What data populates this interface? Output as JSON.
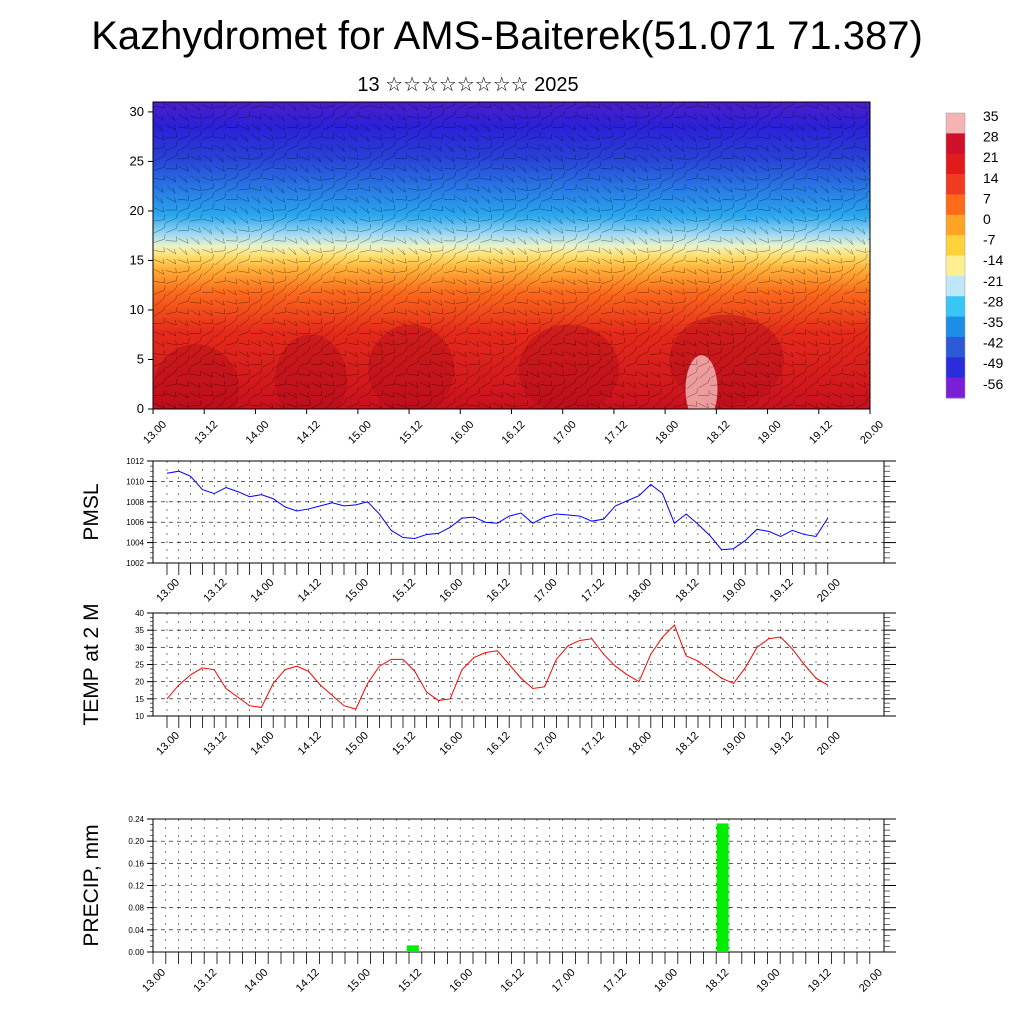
{
  "title": "Kazhydromet for AMS-Baiterek(51.071 71.387)",
  "subtitle": "13 ☆☆☆☆☆☆☆☆ 2025",
  "time_ticks": [
    "13.00",
    "13.12",
    "14.00",
    "14.12",
    "15.00",
    "15.12",
    "16.00",
    "16.12",
    "17.00",
    "17.12",
    "18.00",
    "18.12",
    "19.00",
    "19.12",
    "20.00"
  ],
  "chart_data": [
    {
      "id": "cross-section",
      "type": "heatmap",
      "title": "",
      "ylabel": "",
      "x_ticks": [
        "13.00",
        "13.12",
        "14.00",
        "14.12",
        "15.00",
        "15.12",
        "16.00",
        "16.12",
        "17.00",
        "17.12",
        "18.00",
        "18.12",
        "19.00",
        "19.12",
        "20.00"
      ],
      "y_ticks": [
        0,
        5,
        10,
        15,
        20,
        25,
        30
      ],
      "ylim": [
        0,
        31
      ],
      "colorbar_labels": [
        "35",
        "28",
        "21",
        "14",
        "7",
        "0",
        "-7",
        "-14",
        "-21",
        "-28",
        "-35",
        "-42",
        "-49",
        "-56"
      ],
      "colorbar_colors": [
        "#f4b4b4",
        "#d0102a",
        "#e31a1c",
        "#f03b20",
        "#fd6a1a",
        "#ffa424",
        "#ffd23a",
        "#ffef90",
        "#bfe7f8",
        "#3ac6f4",
        "#1c8ee6",
        "#2a5ad8",
        "#2b2cdc",
        "#7a1fd6"
      ],
      "wind_barbs": true
    },
    {
      "id": "pmsl",
      "type": "line",
      "ylabel": "PMSL",
      "ylim": [
        1002,
        1012
      ],
      "y_ticks": [
        "1002",
        "1004",
        "1006",
        "1008",
        "1010",
        "1012"
      ],
      "color": "#0000ff",
      "x": [
        0,
        1,
        2,
        3,
        4,
        5,
        6,
        7,
        8,
        9,
        10,
        11,
        12,
        13,
        14,
        15,
        16,
        17,
        18,
        19,
        20,
        21,
        22,
        23,
        24,
        25,
        26,
        27,
        28,
        29,
        30,
        31,
        32,
        33,
        34,
        35,
        36,
        37,
        38,
        39,
        40,
        41,
        42,
        43,
        44,
        45,
        46,
        47,
        48,
        49,
        50,
        51,
        52,
        53,
        54,
        55,
        56
      ],
      "values": [
        1010.8,
        1011.0,
        1010.5,
        1009.2,
        1008.8,
        1009.4,
        1009.0,
        1008.5,
        1008.7,
        1008.3,
        1007.5,
        1007.1,
        1007.3,
        1007.6,
        1007.9,
        1007.6,
        1007.7,
        1008.0,
        1006.8,
        1005.2,
        1004.5,
        1004.4,
        1004.8,
        1004.9,
        1005.5,
        1006.4,
        1006.5,
        1006.0,
        1005.9,
        1006.6,
        1006.9,
        1005.9,
        1006.5,
        1006.8,
        1006.7,
        1006.6,
        1006.1,
        1006.3,
        1007.6,
        1008.1,
        1008.6,
        1009.7,
        1008.8,
        1005.9,
        1006.8,
        1005.8,
        1004.7,
        1003.3,
        1003.4,
        1004.2,
        1005.3,
        1005.1,
        1004.6,
        1005.2,
        1004.8,
        1004.6,
        1006.4
      ]
    },
    {
      "id": "temp2m",
      "type": "line",
      "ylabel": "TEMP at 2 M",
      "ylim": [
        10,
        40
      ],
      "y_ticks": [
        "10",
        "15",
        "20",
        "25",
        "30",
        "35",
        "40"
      ],
      "color": "#ff0000",
      "x": [
        0,
        1,
        2,
        3,
        4,
        5,
        6,
        7,
        8,
        9,
        10,
        11,
        12,
        13,
        14,
        15,
        16,
        17,
        18,
        19,
        20,
        21,
        22,
        23,
        24,
        25,
        26,
        27,
        28,
        29,
        30,
        31,
        32,
        33,
        34,
        35,
        36,
        37,
        38,
        39,
        40,
        41,
        42,
        43,
        44,
        45,
        46,
        47,
        48,
        49,
        50,
        51,
        52,
        53,
        54,
        55,
        56
      ],
      "values": [
        15,
        19,
        22,
        24,
        23.5,
        18,
        15.5,
        13,
        12.5,
        19.5,
        23.5,
        24.5,
        23,
        19,
        16,
        13,
        12,
        19.5,
        24.5,
        26.5,
        26.5,
        23,
        17,
        14.5,
        15,
        23.5,
        27,
        28.5,
        29,
        25,
        21,
        18,
        18.5,
        26.5,
        30.5,
        32,
        32.5,
        28,
        24.5,
        22,
        20,
        28,
        33,
        36.5,
        27.5,
        26,
        23.5,
        21,
        19.5,
        24,
        30,
        32.5,
        33,
        29.5,
        25,
        21,
        19
      ]
    },
    {
      "id": "precip",
      "type": "bar",
      "ylabel": "PRECIP, mm",
      "ylim": [
        0,
        0.24
      ],
      "y_ticks": [
        "0.00",
        "0.04",
        "0.08",
        "0.12",
        "0.16",
        "0.20",
        "0.24"
      ],
      "color": "#00ee00",
      "bars": [
        {
          "x": 20.3,
          "value": 0.012
        },
        {
          "x": 44.5,
          "value": 0.232
        }
      ]
    }
  ]
}
